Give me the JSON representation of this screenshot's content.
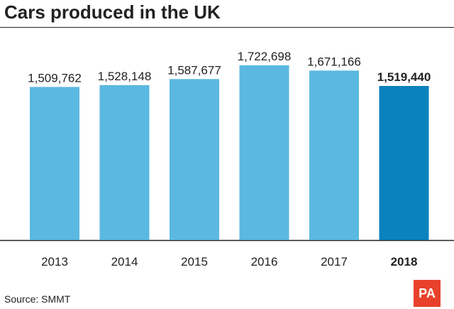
{
  "chart_data": {
    "type": "bar",
    "title": "Cars produced in the UK",
    "categories": [
      "2013",
      "2014",
      "2015",
      "2016",
      "2017",
      "2018"
    ],
    "values": [
      1509762,
      1528148,
      1587677,
      1722698,
      1671166,
      1519440
    ],
    "value_labels": [
      "1,509,762",
      "1,528,148",
      "1,587,677",
      "1,722,698",
      "1,671,166",
      "1,519,440"
    ],
    "highlight_index": 5,
    "xlabel": "",
    "ylabel": "",
    "ylim": [
      0,
      1722698
    ],
    "grid": false,
    "legend": "none",
    "colors": {
      "bar": "#5bb8e0",
      "highlight": "#0a82bd",
      "axis": "#222222",
      "text": "#222222"
    }
  },
  "source": "Source: SMMT",
  "logo": "PA"
}
